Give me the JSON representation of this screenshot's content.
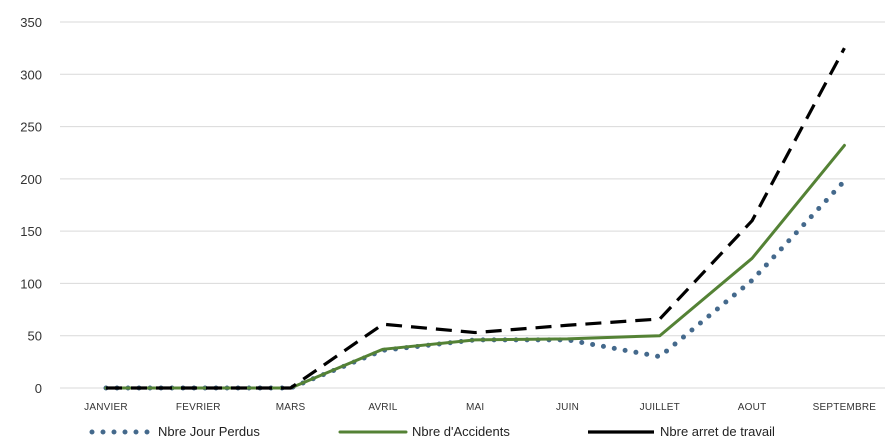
{
  "chart_data": {
    "type": "line",
    "categories": [
      "JANVIER",
      "FEVRIER",
      "MARS",
      "AVRIL",
      "MAI",
      "JUIN",
      "JUILLET",
      "AOUT",
      "SEPTEMBRE"
    ],
    "y_ticks": [
      "0",
      "50",
      "100",
      "150",
      "200",
      "250",
      "300",
      "350"
    ],
    "ylim": [
      0,
      350
    ],
    "grid": true,
    "legend_position": "bottom",
    "series": [
      {
        "name": "Nbre Jour Perdus",
        "values": [
          0,
          0,
          0,
          36,
          46,
          46,
          30,
          103,
          198
        ],
        "color": "#44698c",
        "style": "dotted"
      },
      {
        "name": "Nbre d'Accidents",
        "values": [
          0,
          0,
          0,
          37,
          46,
          47,
          50,
          124,
          232
        ],
        "color": "#548235",
        "style": "solid"
      },
      {
        "name": "Nbre arret de travail",
        "values": [
          0,
          0,
          0,
          61,
          53,
          60,
          66,
          160,
          325
        ],
        "color": "#000000",
        "style": "dashed"
      }
    ]
  }
}
